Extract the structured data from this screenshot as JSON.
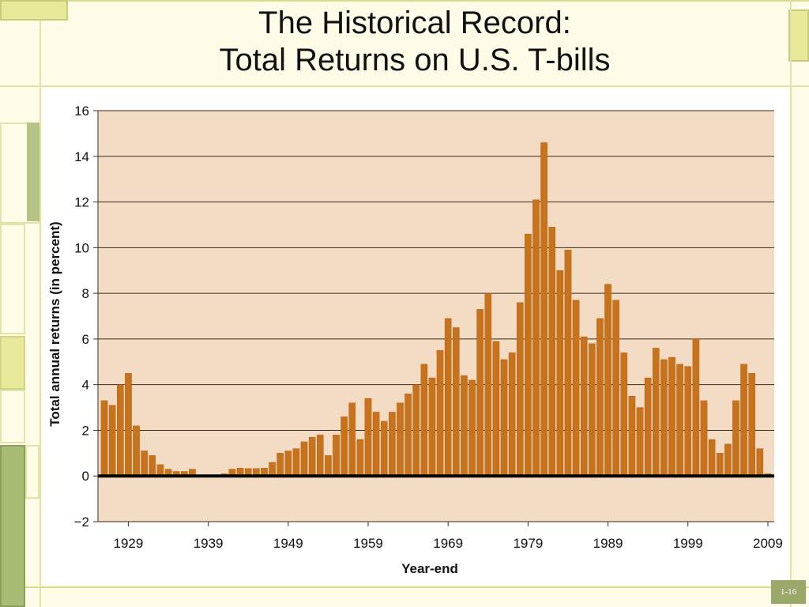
{
  "slide": {
    "title_line1": "The Historical Record:",
    "title_line2": "Total Returns on U.S. T-bills",
    "slide_number": "1-16"
  },
  "colors": {
    "bar": "#c9721c",
    "bar_edge": "#9a5210",
    "plot_background": "#f4dcc4",
    "gridline": "#3a2a1a",
    "zero_line": "#000000",
    "frame_green": "#b5c484",
    "frame_yellow": "#e8ea9a",
    "slide_number_box": "#9aa86a"
  },
  "chart_data": {
    "type": "bar",
    "title": "",
    "xlabel": "Year-end",
    "ylabel": "Total annual returns (in percent)",
    "ylim": [
      -2,
      16
    ],
    "yticks": [
      16,
      14,
      12,
      10,
      8,
      6,
      4,
      2,
      0,
      -2
    ],
    "ytick_labels": [
      "16",
      "14",
      "12",
      "10",
      "8",
      "6",
      "4",
      "2",
      "0",
      "−2"
    ],
    "xticks": [
      1929,
      1939,
      1949,
      1959,
      1969,
      1979,
      1989,
      1999,
      2009
    ],
    "xtick_labels": [
      "1929",
      "1939",
      "1949",
      "1959",
      "1969",
      "1979",
      "1989",
      "1999",
      "2009"
    ],
    "x_start": 1926,
    "grid": "horizontal",
    "values": [
      3.3,
      3.1,
      4.0,
      4.5,
      2.2,
      1.1,
      0.9,
      0.5,
      0.3,
      0.2,
      0.2,
      0.3,
      0.0,
      0.0,
      0.0,
      0.1,
      0.3,
      0.35,
      0.33,
      0.33,
      0.35,
      0.6,
      1.0,
      1.1,
      1.2,
      1.5,
      1.7,
      1.8,
      0.9,
      1.8,
      2.6,
      3.2,
      1.6,
      3.4,
      2.8,
      2.4,
      2.8,
      3.2,
      3.6,
      4.0,
      4.9,
      4.3,
      5.5,
      6.9,
      6.5,
      4.4,
      4.2,
      7.3,
      8.0,
      5.9,
      5.1,
      5.4,
      7.6,
      10.6,
      12.1,
      14.6,
      10.9,
      9.0,
      9.9,
      7.7,
      6.1,
      5.8,
      6.9,
      8.4,
      7.7,
      5.4,
      3.5,
      3.0,
      4.3,
      5.6,
      5.1,
      5.2,
      4.9,
      4.8,
      6.0,
      3.3,
      1.6,
      1.0,
      1.4,
      3.3,
      4.9,
      4.5,
      1.2,
      0.1
    ]
  }
}
